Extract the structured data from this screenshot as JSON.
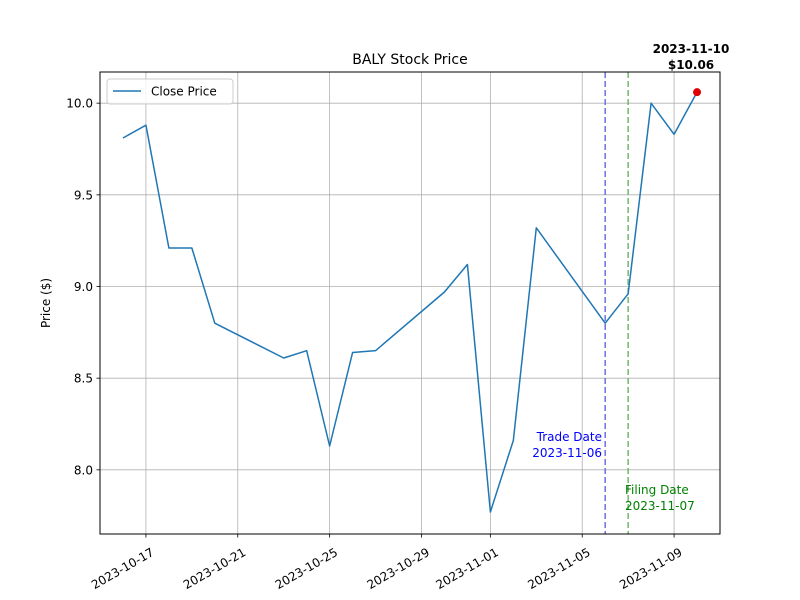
{
  "chart_data": {
    "type": "line",
    "title": "BALY Stock Price",
    "xlabel": "",
    "ylabel": "Price ($)",
    "x_range": [
      "2023-10-15",
      "2023-11-11"
    ],
    "ylim": [
      7.65,
      10.17
    ],
    "grid": true,
    "legend_position": "top-left",
    "x_ticks": [
      "2023-10-17",
      "2023-10-21",
      "2023-10-25",
      "2023-10-29",
      "2023-11-01",
      "2023-11-05",
      "2023-11-09"
    ],
    "y_ticks": [
      8.0,
      8.5,
      9.0,
      9.5,
      10.0
    ],
    "y_tick_labels": [
      "8.0",
      "8.5",
      "9.0",
      "9.5",
      "10.0"
    ],
    "series": [
      {
        "name": "Close Price",
        "color": "#1f77b4",
        "points": [
          {
            "x": "2023-10-16",
            "y": 9.81
          },
          {
            "x": "2023-10-17",
            "y": 9.88
          },
          {
            "x": "2023-10-18",
            "y": 9.21
          },
          {
            "x": "2023-10-19",
            "y": 9.21
          },
          {
            "x": "2023-10-20",
            "y": 8.8
          },
          {
            "x": "2023-10-23",
            "y": 8.61
          },
          {
            "x": "2023-10-24",
            "y": 8.65
          },
          {
            "x": "2023-10-25",
            "y": 8.13
          },
          {
            "x": "2023-10-26",
            "y": 8.64
          },
          {
            "x": "2023-10-27",
            "y": 8.65
          },
          {
            "x": "2023-10-30",
            "y": 8.97
          },
          {
            "x": "2023-10-31",
            "y": 9.12
          },
          {
            "x": "2023-11-01",
            "y": 7.77
          },
          {
            "x": "2023-11-02",
            "y": 8.16
          },
          {
            "x": "2023-11-03",
            "y": 9.32
          },
          {
            "x": "2023-11-06",
            "y": 8.8
          },
          {
            "x": "2023-11-07",
            "y": 8.96
          },
          {
            "x": "2023-11-08",
            "y": 10.0
          },
          {
            "x": "2023-11-09",
            "y": 9.83
          },
          {
            "x": "2023-11-10",
            "y": 10.06
          }
        ]
      }
    ],
    "vlines": [
      {
        "x": "2023-11-06",
        "color": "#7070e0",
        "label_line1": "Trade Date",
        "label_line2": "2023-11-06",
        "label_color": "#0000ff"
      },
      {
        "x": "2023-11-07",
        "color": "#70b870",
        "label_line1": "Filing Date",
        "label_line2": "2023-11-07",
        "label_color": "#008000"
      }
    ],
    "highlight": {
      "x": "2023-11-10",
      "y": 10.06,
      "color": "#e00000",
      "label_line1": "2023-11-10",
      "label_line2": "$10.06"
    }
  }
}
